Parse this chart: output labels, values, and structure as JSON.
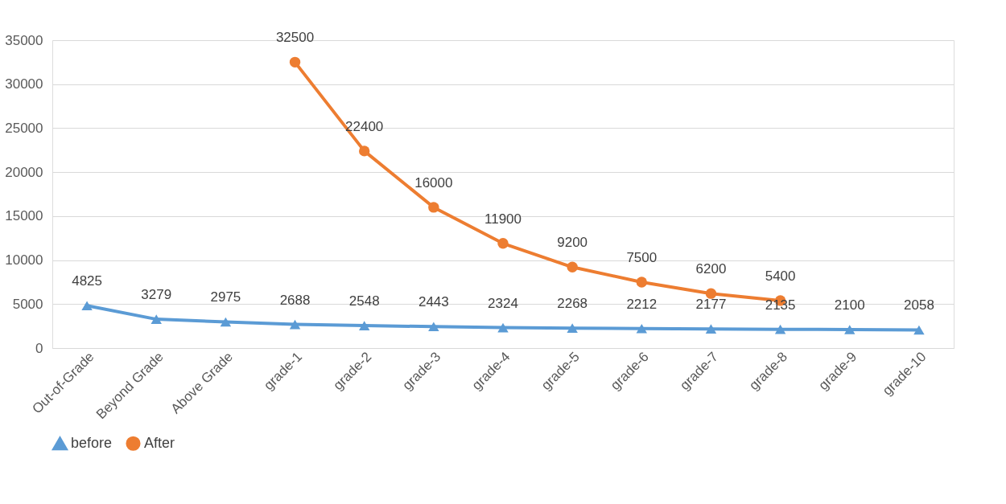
{
  "chart_data": {
    "type": "line",
    "categories": [
      "Out-of-Grade",
      "Beyond Grade",
      "Above Grade",
      "grade-1",
      "grade-2",
      "grade-3",
      "grade-4",
      "grade-5",
      "grade-6",
      "grade-7",
      "grade-8",
      "grade-9",
      "grade-10"
    ],
    "series": [
      {
        "name": "before",
        "color": "#5b9bd5",
        "marker": "triangle",
        "values": [
          4825,
          3279,
          2975,
          2688,
          2548,
          2443,
          2324,
          2268,
          2212,
          2177,
          2135,
          2100,
          2058
        ]
      },
      {
        "name": "After",
        "color": "#ed7d31",
        "marker": "circle",
        "values": [
          null,
          null,
          null,
          32500,
          22400,
          16000,
          11900,
          9200,
          7500,
          6200,
          5400,
          null,
          null
        ]
      }
    ],
    "ylim": [
      0,
      35000
    ],
    "yticks": [
      0,
      5000,
      10000,
      15000,
      20000,
      25000,
      30000,
      35000
    ],
    "grid": "y",
    "legend": "bottom",
    "data_labels": true,
    "line_style": "solid"
  }
}
